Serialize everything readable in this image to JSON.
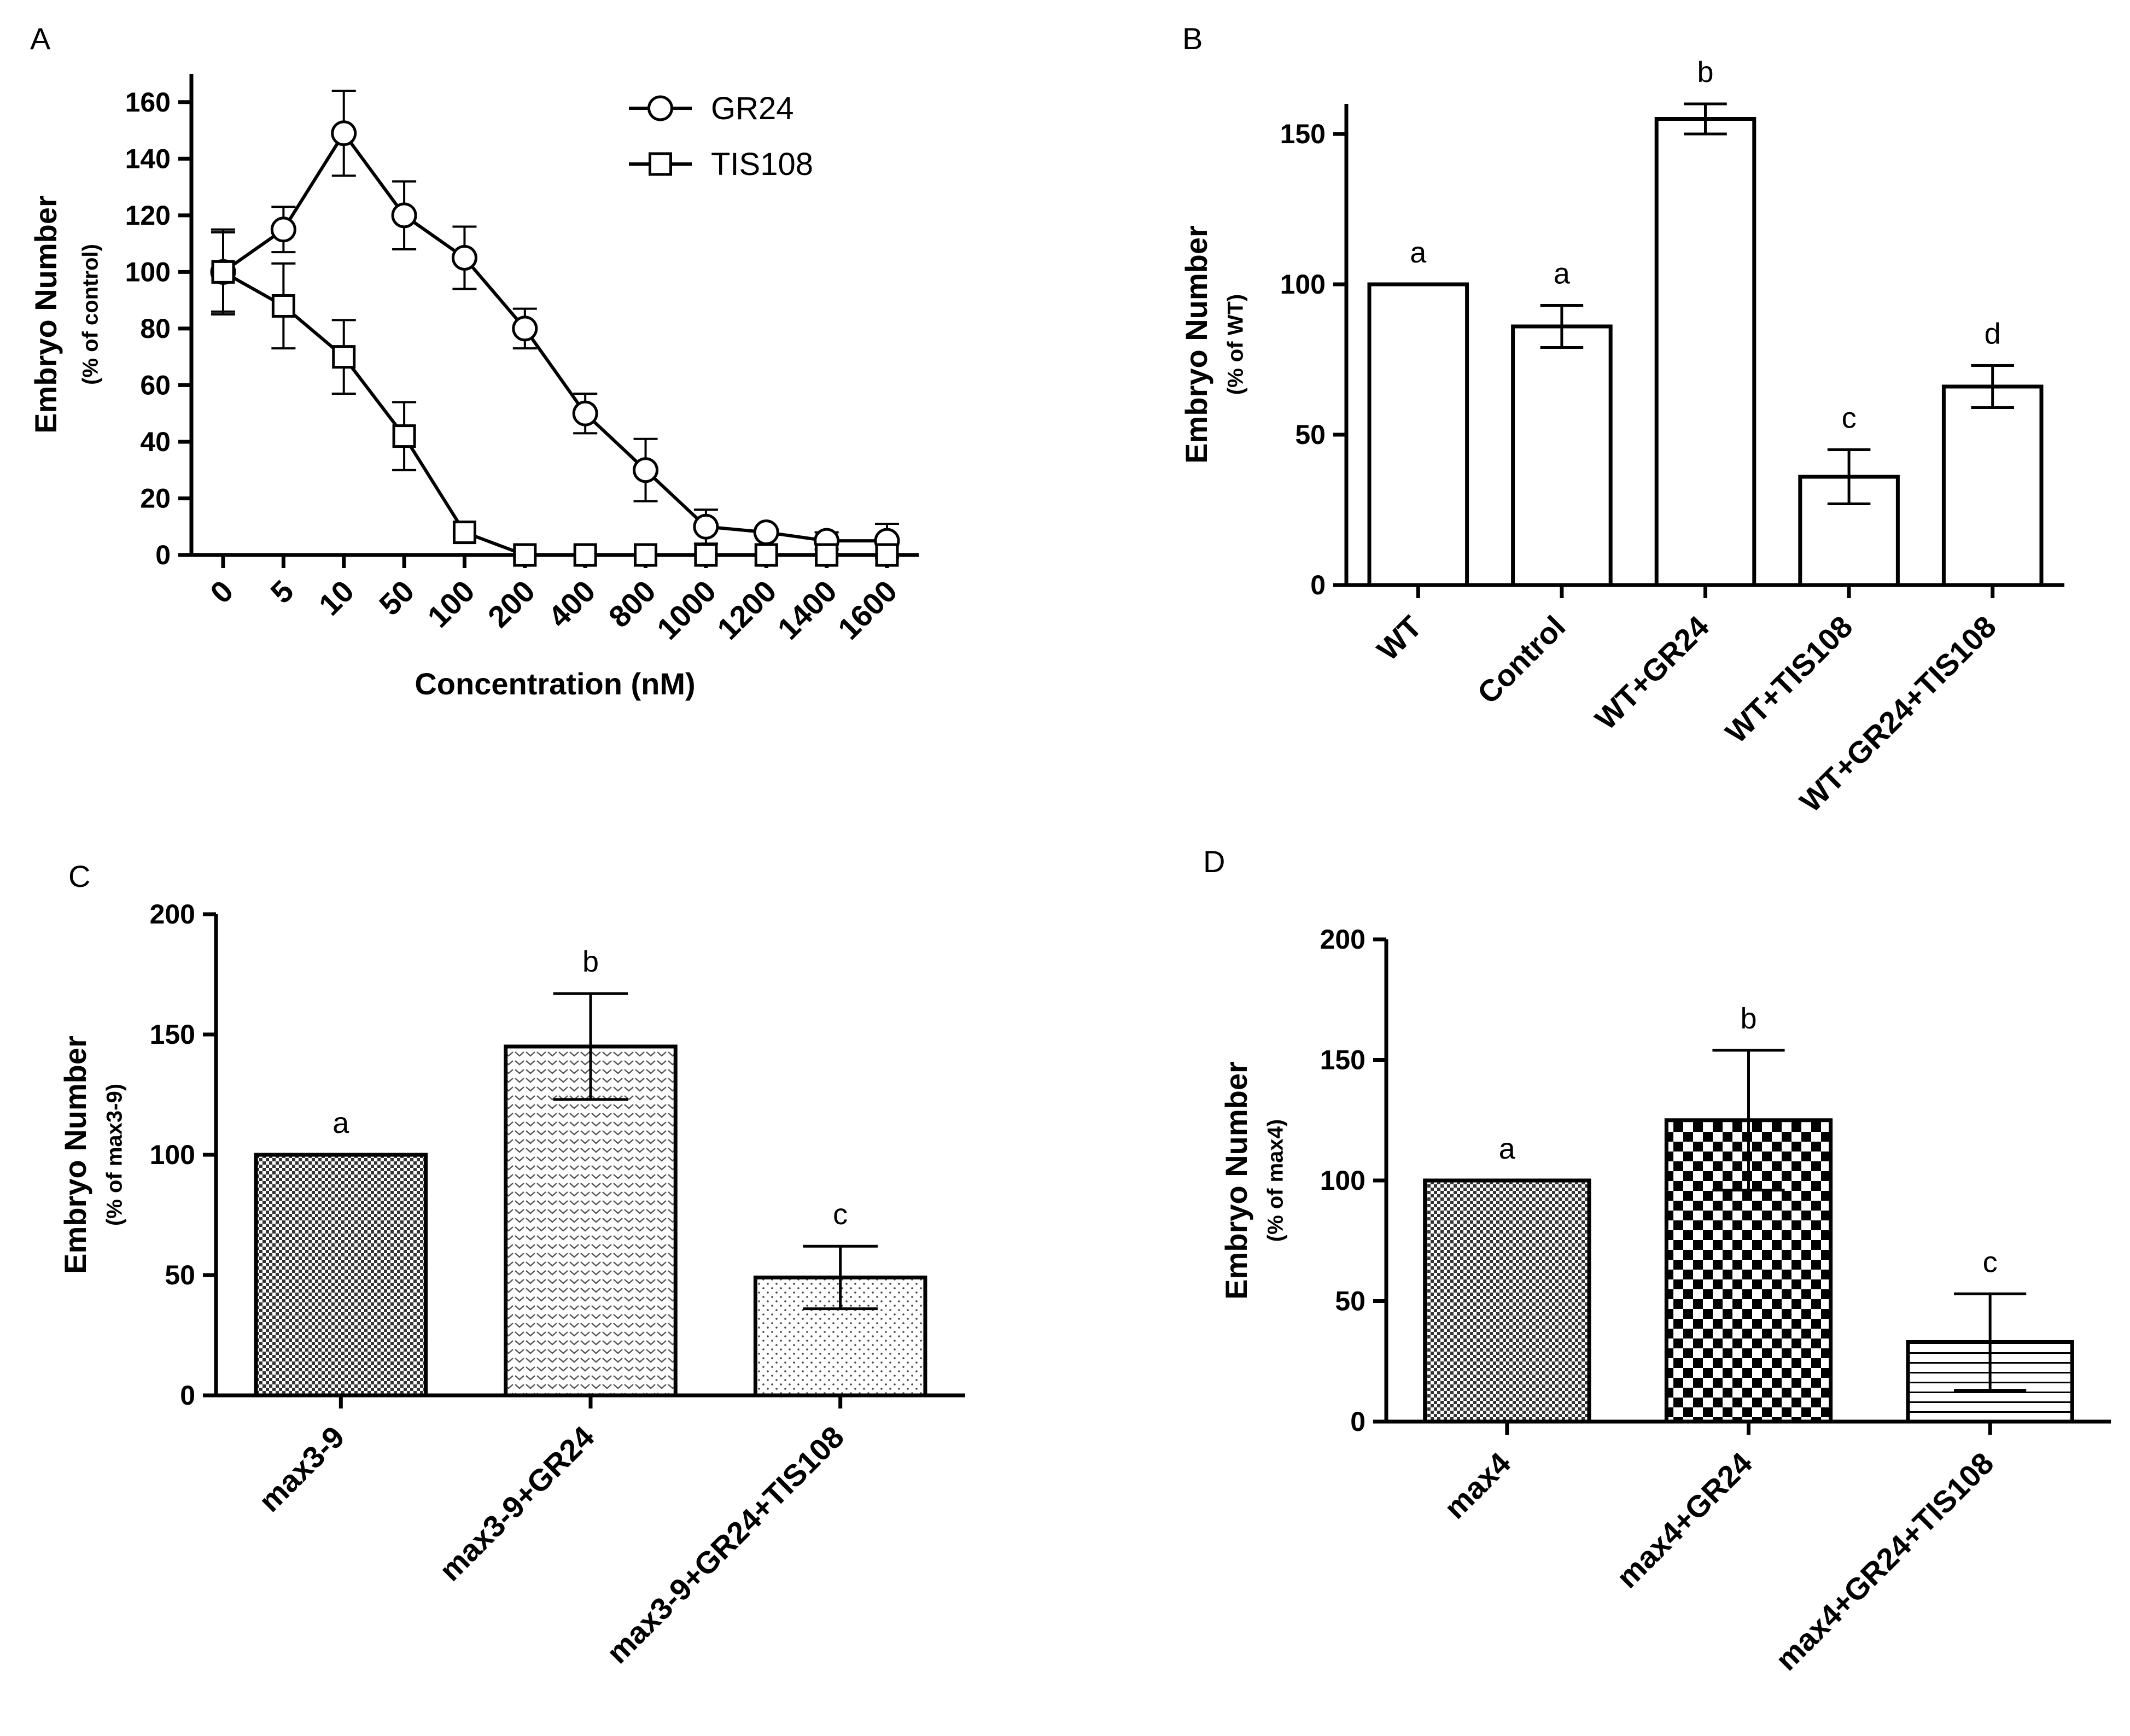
{
  "figure": {
    "panels": [
      "A",
      "B",
      "C",
      "D"
    ]
  },
  "chart_data": [
    {
      "panel": "A",
      "type": "line",
      "title": "",
      "xlabel": "Concentration (nM)",
      "ylabel": "Embryo Number",
      "ylabel_sub": "(% of control)",
      "categories": [
        "0",
        "5",
        "10",
        "50",
        "100",
        "200",
        "400",
        "800",
        "1000",
        "1200",
        "1400",
        "1600"
      ],
      "ylim": [
        0,
        170
      ],
      "yticks": [
        0,
        20,
        40,
        60,
        80,
        100,
        120,
        140,
        160
      ],
      "legend": "top-right",
      "series": [
        {
          "name": "GR24",
          "marker": "circle",
          "values": [
            100,
            115,
            149,
            120,
            105,
            80,
            50,
            30,
            10,
            8,
            5,
            5
          ],
          "errors": [
            15,
            8,
            15,
            12,
            11,
            7,
            7,
            11,
            6,
            0,
            3,
            6
          ]
        },
        {
          "name": "TIS108",
          "marker": "square",
          "values": [
            100,
            88,
            70,
            42,
            8,
            0,
            0,
            0,
            0,
            0,
            0,
            0
          ],
          "errors": [
            14,
            15,
            13,
            12,
            0,
            0,
            0,
            0,
            0,
            0,
            0,
            0
          ]
        }
      ]
    },
    {
      "panel": "B",
      "type": "bar",
      "title": "",
      "xlabel": "",
      "ylabel": "Embryo Number",
      "ylabel_sub": "(% of WT)",
      "categories": [
        "WT",
        "Control",
        "WT+GR24",
        "WT+TIS108",
        "WT+GR24+TIS108"
      ],
      "values": [
        100,
        86,
        155,
        36,
        66
      ],
      "errors": [
        0,
        7,
        5,
        9,
        7
      ],
      "letters": [
        "a",
        "a",
        "b",
        "c",
        "d"
      ],
      "ylim": [
        0,
        160
      ],
      "yticks": [
        0,
        50,
        100,
        150
      ],
      "patterns": [
        "plain",
        "plain",
        "plain",
        "plain",
        "plain"
      ]
    },
    {
      "panel": "C",
      "type": "bar",
      "title": "",
      "xlabel": "",
      "ylabel": "Embryo Number",
      "ylabel_sub": "(% of max3-9)",
      "categories": [
        "max3-9",
        "max3-9+GR24",
        "max3-9+GR24+TIS108"
      ],
      "values": [
        100,
        145,
        49
      ],
      "errors": [
        0,
        22,
        13
      ],
      "letters": [
        "a",
        "b",
        "c"
      ],
      "ylim": [
        0,
        200
      ],
      "yticks": [
        0,
        50,
        100,
        150,
        200
      ],
      "patterns": [
        "dense",
        "chevron",
        "dots"
      ]
    },
    {
      "panel": "D",
      "type": "bar",
      "title": "",
      "xlabel": "",
      "ylabel": "Embryo Number",
      "ylabel_sub": "(% of max4)",
      "categories": [
        "max4",
        "max4+GR24",
        "max4+GR24+TIS108"
      ],
      "values": [
        100,
        125,
        33
      ],
      "errors": [
        0,
        29,
        20
      ],
      "letters": [
        "a",
        "b",
        "c"
      ],
      "ylim": [
        0,
        200
      ],
      "yticks": [
        0,
        50,
        100,
        150,
        200
      ],
      "patterns": [
        "dense",
        "checker",
        "hlines"
      ]
    }
  ]
}
